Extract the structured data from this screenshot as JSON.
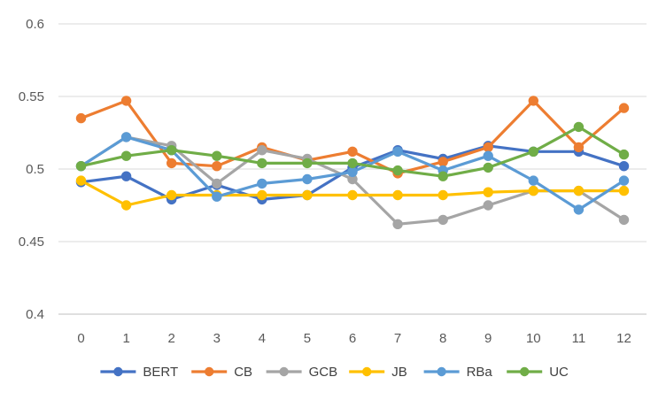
{
  "chart_data": {
    "type": "line",
    "x": [
      0,
      1,
      2,
      3,
      4,
      5,
      6,
      7,
      8,
      9,
      10,
      11,
      12
    ],
    "ylim": [
      0.4,
      0.6
    ],
    "yticks": [
      "0.4",
      "0.45",
      "0.5",
      "0.55",
      "0.6"
    ],
    "grid": "horizontal",
    "legend_position": "bottom",
    "series": [
      {
        "name": "BERT",
        "color": "#4472C4",
        "values": [
          0.491,
          0.495,
          0.479,
          0.489,
          0.479,
          0.482,
          0.501,
          0.513,
          0.507,
          0.516,
          0.512,
          0.512,
          0.502
        ]
      },
      {
        "name": "CB",
        "color": "#ED7D31",
        "values": [
          0.535,
          0.547,
          0.504,
          0.502,
          0.515,
          0.506,
          0.512,
          0.497,
          0.505,
          0.515,
          0.547,
          0.515,
          0.542
        ]
      },
      {
        "name": "GCB",
        "color": "#A5A5A5",
        "values": [
          0.502,
          0.522,
          0.516,
          0.49,
          0.513,
          0.507,
          0.493,
          0.462,
          0.465,
          0.475,
          0.485,
          0.485,
          0.465
        ]
      },
      {
        "name": "JB",
        "color": "#FFC000",
        "values": [
          0.492,
          0.475,
          0.482,
          0.482,
          0.482,
          0.482,
          0.482,
          0.482,
          0.482,
          0.484,
          0.485,
          0.485,
          0.485
        ]
      },
      {
        "name": "RBa",
        "color": "#5B9BD5",
        "values": [
          0.502,
          0.522,
          0.513,
          0.481,
          0.49,
          0.493,
          0.498,
          0.512,
          0.499,
          0.509,
          0.492,
          0.472,
          0.492
        ]
      },
      {
        "name": "UC",
        "color": "#70AD47",
        "values": [
          0.502,
          0.509,
          0.513,
          0.509,
          0.504,
          0.504,
          0.504,
          0.499,
          0.495,
          0.501,
          0.512,
          0.529,
          0.51
        ]
      }
    ]
  }
}
